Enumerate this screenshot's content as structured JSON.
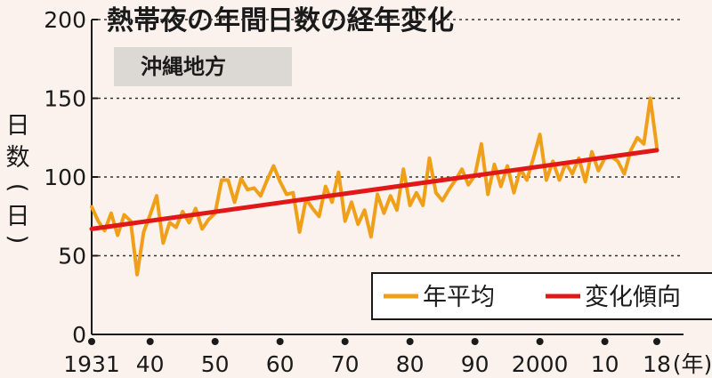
{
  "chart_data": {
    "type": "line",
    "title": "熱帯夜の年間日数の経年変化",
    "subtitle": "沖縄地方",
    "ylabel": [
      "日",
      "数",
      "(",
      "日",
      ")"
    ],
    "ylim": [
      0,
      200
    ],
    "yticks": [
      0,
      50,
      100,
      150,
      200
    ],
    "xlim": [
      1931,
      2018
    ],
    "xticks": [
      {
        "x": 1931,
        "label": "1931"
      },
      {
        "x": 1940,
        "label": "40"
      },
      {
        "x": 1950,
        "label": "50"
      },
      {
        "x": 1960,
        "label": "60"
      },
      {
        "x": 1970,
        "label": "70"
      },
      {
        "x": 1980,
        "label": "80"
      },
      {
        "x": 1990,
        "label": "90"
      },
      {
        "x": 2000,
        "label": "2000"
      },
      {
        "x": 2010,
        "label": "10"
      },
      {
        "x": 2018,
        "label": "18"
      }
    ],
    "xunit": "(年)",
    "grid": "horizontal dashed",
    "legend_position": "bottom-right",
    "series": [
      {
        "name": "年平均",
        "color": "#f0a018",
        "x": [
          1931,
          1932,
          1933,
          1934,
          1935,
          1936,
          1937,
          1938,
          1939,
          1940,
          1941,
          1942,
          1943,
          1944,
          1945,
          1946,
          1947,
          1948,
          1949,
          1950,
          1951,
          1952,
          1953,
          1954,
          1955,
          1956,
          1957,
          1958,
          1959,
          1960,
          1961,
          1962,
          1963,
          1964,
          1965,
          1966,
          1967,
          1968,
          1969,
          1970,
          1971,
          1972,
          1973,
          1974,
          1975,
          1976,
          1977,
          1978,
          1979,
          1980,
          1981,
          1982,
          1983,
          1984,
          1985,
          1986,
          1987,
          1988,
          1989,
          1990,
          1991,
          1992,
          1993,
          1994,
          1995,
          1996,
          1997,
          1998,
          1999,
          2000,
          2001,
          2002,
          2003,
          2004,
          2005,
          2006,
          2007,
          2008,
          2009,
          2010,
          2011,
          2012,
          2013,
          2014,
          2015,
          2016,
          2017,
          2018
        ],
        "values": [
          81,
          72,
          66,
          77,
          63,
          76,
          72,
          38,
          65,
          76,
          88,
          58,
          71,
          68,
          78,
          71,
          80,
          67,
          73,
          77,
          98,
          98,
          84,
          99,
          92,
          93,
          88,
          98,
          107,
          97,
          89,
          90,
          65,
          86,
          80,
          75,
          94,
          84,
          103,
          72,
          84,
          70,
          79,
          62,
          89,
          77,
          88,
          79,
          105,
          82,
          90,
          82,
          112,
          90,
          85,
          92,
          98,
          105,
          95,
          101,
          121,
          89,
          108,
          94,
          107,
          90,
          105,
          98,
          112,
          127,
          98,
          110,
          98,
          109,
          102,
          112,
          97,
          116,
          104,
          112,
          113,
          110,
          102,
          117,
          125,
          121,
          150,
          119
        ]
      },
      {
        "name": "変化傾向",
        "color": "#e01818",
        "x": [
          1931,
          2018
        ],
        "values": [
          67,
          117
        ]
      }
    ]
  }
}
